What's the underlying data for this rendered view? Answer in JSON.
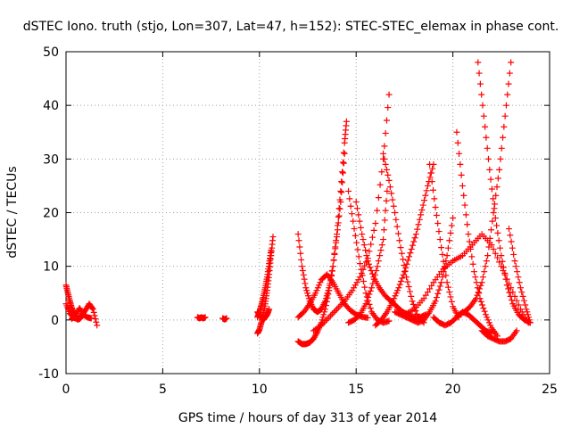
{
  "chart_data": {
    "type": "scatter",
    "title": "dSTEC Iono. truth (stjo, Lon=307, Lat=47, h=152): STEC-STEC_elemax in phase cont.",
    "xlabel": "GPS time / hours of day 313 of year 2014",
    "ylabel": "dSTEC  / TECUs",
    "xlim": [
      0,
      25
    ],
    "ylim": [
      -10,
      50
    ],
    "xticks": [
      0,
      5,
      10,
      15,
      20,
      25
    ],
    "yticks": [
      -10,
      0,
      10,
      20,
      30,
      40,
      50
    ],
    "xtick_labels": [
      "0",
      "5",
      "10",
      "15",
      "20",
      "25"
    ],
    "ytick_labels": [
      "-10",
      "0",
      "10",
      "20",
      "30",
      "40",
      "50"
    ],
    "grid": true,
    "marker": "+",
    "color": "#ff0000",
    "series": [
      {
        "x": [
          0.0,
          0.1,
          0.2,
          0.3,
          0.4,
          0.5,
          0.6,
          0.7,
          0.8
        ],
        "y": [
          6.5,
          5.0,
          3.5,
          2.2,
          1.2,
          0.5,
          0.1,
          0.2,
          0.6
        ]
      },
      {
        "x": [
          0.0,
          0.2,
          0.4,
          0.6,
          0.8,
          1.0,
          1.2,
          1.4,
          1.6
        ],
        "y": [
          3.0,
          1.2,
          0.4,
          0.2,
          0.8,
          1.8,
          3.0,
          2.0,
          -1.0
        ]
      },
      {
        "x": [
          0.3,
          0.5,
          0.7,
          0.9,
          1.1,
          1.3
        ],
        "y": [
          0.2,
          1.0,
          2.2,
          1.0,
          0.5,
          0.3
        ]
      },
      {
        "x": [
          6.8,
          6.9,
          7.0,
          7.1,
          7.2
        ],
        "y": [
          0.5,
          0.3,
          0.5,
          0.3,
          0.5
        ]
      },
      {
        "x": [
          8.1,
          8.2,
          8.3
        ],
        "y": [
          0.3,
          0.1,
          0.3
        ]
      },
      {
        "x": [
          9.9,
          10.0,
          10.1,
          10.2,
          10.3,
          10.4,
          10.5,
          10.6,
          10.7
        ],
        "y": [
          -2.5,
          -1.8,
          -0.5,
          1.0,
          3.0,
          5.5,
          8.5,
          12.0,
          15.5
        ]
      },
      {
        "x": [
          9.9,
          10.0,
          10.1,
          10.2,
          10.3,
          10.4,
          10.5,
          10.6
        ],
        "y": [
          0.5,
          1.5,
          2.8,
          4.2,
          6.0,
          8.0,
          10.5,
          13.0
        ]
      },
      {
        "x": [
          9.9,
          10.0,
          10.1,
          10.2,
          10.3,
          10.4,
          10.5
        ],
        "y": [
          1.5,
          1.0,
          0.5,
          0.0,
          0.5,
          1.0,
          2.0
        ]
      },
      {
        "x": [
          12.0,
          12.2,
          12.4,
          12.6,
          12.8,
          13.0,
          13.2,
          13.4,
          13.6,
          13.8,
          14.0,
          14.2,
          14.4,
          14.5
        ],
        "y": [
          -4.0,
          -4.5,
          -4.5,
          -4.2,
          -3.5,
          -2.2,
          -0.5,
          2.0,
          5.5,
          10.0,
          16.0,
          24.0,
          33.0,
          37.0
        ]
      },
      {
        "x": [
          12.0,
          12.2,
          12.4,
          12.6,
          12.8,
          13.0,
          13.2,
          13.4,
          13.6,
          13.8,
          14.0,
          14.2,
          14.4
        ],
        "y": [
          16.0,
          10.0,
          6.0,
          3.5,
          2.0,
          1.5,
          2.0,
          3.5,
          6.0,
          10.0,
          15.5,
          22.0,
          31.0
        ]
      },
      {
        "x": [
          12.0,
          12.3,
          12.6,
          12.9,
          13.2,
          13.5,
          13.8,
          14.1,
          14.4,
          14.7,
          15.0,
          15.3,
          15.6
        ],
        "y": [
          0.5,
          1.5,
          3.0,
          5.0,
          7.5,
          8.5,
          7.0,
          5.0,
          3.0,
          1.8,
          1.0,
          0.6,
          0.4
        ]
      },
      {
        "x": [
          12.8,
          13.2,
          13.6,
          14.0,
          14.4,
          14.8,
          15.2,
          15.6,
          16.0,
          16.4,
          16.7
        ],
        "y": [
          -2.0,
          -1.0,
          0.5,
          2.0,
          3.5,
          5.5,
          8.0,
          11.5,
          18.0,
          30.0,
          42.0
        ]
      },
      {
        "x": [
          14.6,
          14.9,
          15.2,
          15.5,
          15.8,
          16.1,
          16.4,
          16.7
        ],
        "y": [
          24.0,
          17.0,
          10.5,
          5.0,
          1.5,
          0.0,
          -0.5,
          -0.2
        ]
      },
      {
        "x": [
          14.6,
          14.9,
          15.2,
          15.5,
          15.8,
          16.1,
          16.4,
          16.6
        ],
        "y": [
          -0.5,
          0.0,
          1.0,
          3.0,
          6.0,
          10.0,
          15.0,
          24.0
        ]
      },
      {
        "x": [
          15.0,
          15.3,
          15.6,
          15.9,
          16.2,
          16.5,
          16.8,
          17.1,
          17.4,
          17.7,
          18.0,
          18.3,
          18.6
        ],
        "y": [
          22.0,
          16.0,
          11.0,
          8.0,
          6.0,
          4.5,
          3.5,
          2.5,
          1.5,
          1.0,
          0.5,
          0.5,
          1.0
        ]
      },
      {
        "x": [
          16.0,
          16.3,
          16.6,
          16.9,
          17.2,
          17.5,
          17.8,
          18.1,
          18.4,
          18.7,
          19.0
        ],
        "y": [
          -1.0,
          0.0,
          1.5,
          3.5,
          6.0,
          9.0,
          12.5,
          16.0,
          20.5,
          25.0,
          29.0
        ]
      },
      {
        "x": [
          16.4,
          16.7,
          17.0,
          17.3,
          17.6,
          17.9,
          18.2,
          18.5
        ],
        "y": [
          31.0,
          26.0,
          20.0,
          13.5,
          8.0,
          3.5,
          0.5,
          -0.5
        ]
      },
      {
        "x": [
          17.0,
          17.3,
          17.6,
          17.9,
          18.2,
          18.5,
          18.8,
          19.1,
          19.4,
          19.7,
          20.0
        ],
        "y": [
          1.5,
          1.0,
          0.5,
          0.0,
          -0.5,
          0.0,
          1.5,
          3.5,
          7.0,
          12.0,
          19.0
        ]
      },
      {
        "x": [
          17.5,
          18.0,
          18.5,
          19.0,
          19.5,
          20.0,
          20.5,
          21.0,
          21.5,
          22.0,
          22.5,
          23.0,
          23.5,
          23.9
        ],
        "y": [
          1.0,
          2.0,
          4.0,
          7.0,
          9.5,
          11.0,
          12.0,
          14.0,
          16.0,
          14.0,
          10.0,
          6.0,
          2.0,
          -0.5
        ]
      },
      {
        "x": [
          18.8,
          19.1,
          19.4,
          19.7,
          20.0,
          20.3
        ],
        "y": [
          29.0,
          21.0,
          13.5,
          7.0,
          2.5,
          0.5
        ]
      },
      {
        "x": [
          19.0,
          19.3,
          19.6,
          19.9,
          20.2,
          20.5,
          20.8,
          21.1,
          21.4,
          21.7,
          22.0
        ],
        "y": [
          0.5,
          -0.5,
          -1.0,
          -0.5,
          0.5,
          1.5,
          1.0,
          0.0,
          -1.0,
          -2.0,
          -2.5
        ]
      },
      {
        "x": [
          20.2,
          20.5,
          20.8,
          21.1,
          21.4,
          21.7,
          22.0,
          22.3
        ],
        "y": [
          35.0,
          25.0,
          16.0,
          9.0,
          4.0,
          1.0,
          -1.5,
          -3.0
        ]
      },
      {
        "x": [
          20.3,
          20.6,
          20.9,
          21.2,
          21.5,
          21.8,
          22.1,
          22.4,
          22.7,
          23.0
        ],
        "y": [
          1.0,
          1.5,
          2.5,
          4.0,
          7.0,
          12.0,
          20.0,
          28.0,
          38.0,
          48.0
        ]
      },
      {
        "x": [
          21.3,
          21.6,
          21.9,
          22.2,
          22.5,
          22.8,
          23.1,
          23.4,
          23.7,
          24.0
        ],
        "y": [
          48.0,
          38.0,
          28.0,
          19.0,
          12.0,
          6.5,
          3.0,
          1.0,
          0.0,
          -0.5
        ]
      },
      {
        "x": [
          21.5,
          21.8,
          22.1,
          22.4,
          22.7,
          23.0,
          23.3
        ],
        "y": [
          -2.0,
          -3.0,
          -3.5,
          -4.0,
          -4.0,
          -3.5,
          -2.0
        ]
      },
      {
        "x": [
          22.9,
          23.2,
          23.5,
          23.8,
          24.0
        ],
        "y": [
          17.0,
          11.0,
          6.0,
          2.0,
          -0.5
        ]
      }
    ]
  }
}
